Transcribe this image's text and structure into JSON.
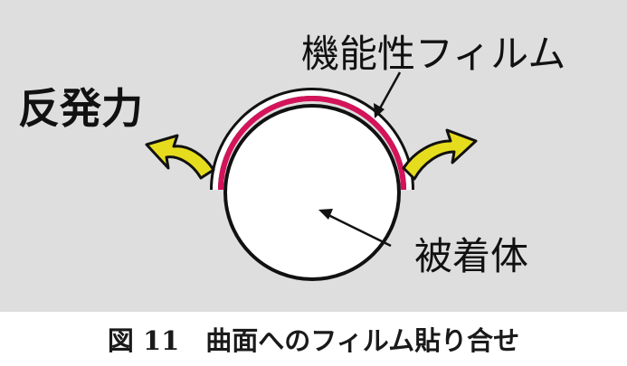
{
  "labels": {
    "film": "機能性フィルム",
    "force": "反発力",
    "object": "被着体"
  },
  "caption": "図 11　曲面へのフィルム貼り合せ",
  "colors": {
    "panel_background": "#dedede",
    "page_background": "#ffffff",
    "film_layer": "#d4145a",
    "outline": "#111111",
    "object_fill": "#ffffff",
    "arrow_fill": "#e6dc1e"
  }
}
